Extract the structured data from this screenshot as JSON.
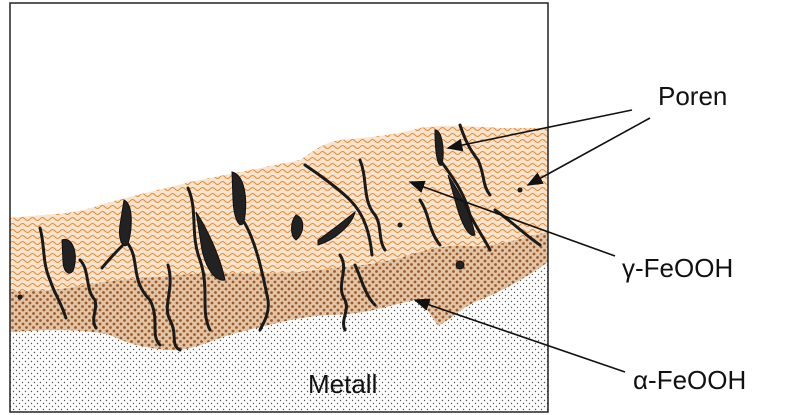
{
  "labels": {
    "pores": "Poren",
    "gamma": "γ-FeOOH",
    "alpha": "α-FeOOH",
    "metal": "Metall"
  }
}
